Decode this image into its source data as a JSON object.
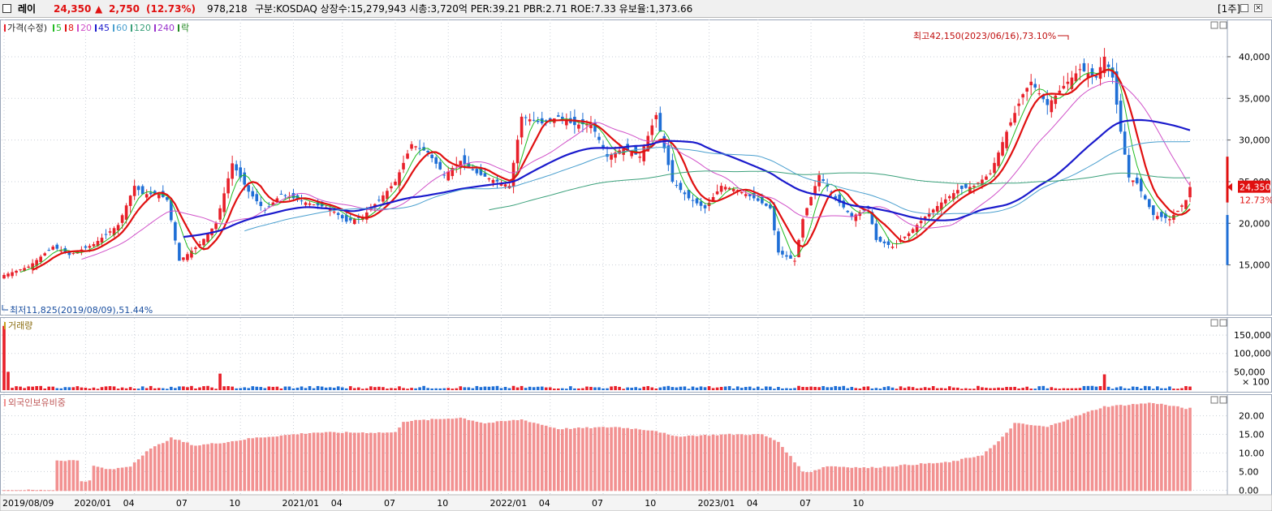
{
  "header": {
    "name": "레이",
    "price": "24,350",
    "change_arrow": "▲",
    "change": "2,750",
    "change_pct": "(12.73%)",
    "volume": "978,218",
    "info": "구분:KOSDAQ 상장수:15,279,943 시총:3,720억 PER:39.21 PBR:2.71 ROE:7.33 유보율:1,373.66",
    "period": "[1주]"
  },
  "colors": {
    "up": "#e8202a",
    "down": "#1f6fd6",
    "ma5": "#22bb22",
    "ma8": "#e01010",
    "ma20": "#d050c8",
    "ma45": "#1a1acc",
    "ma60": "#4a9fcf",
    "ma120": "#3aa07a",
    "ma240": "#9933cc",
    "foreign": "#f29191"
  },
  "chart_data": [
    {
      "type": "candlestick",
      "title": "가격(수정)",
      "legend": [
        {
          "label": "가격(수정)",
          "color": "#e8202a"
        },
        {
          "label": "5",
          "color": "#22bb22"
        },
        {
          "label": "8",
          "color": "#e01010"
        },
        {
          "label": "20",
          "color": "#d050c8"
        },
        {
          "label": "45",
          "color": "#1a1acc"
        },
        {
          "label": "60",
          "color": "#4a9fcf"
        },
        {
          "label": "120",
          "color": "#3aa07a"
        },
        {
          "label": "240",
          "color": "#9933cc"
        },
        {
          "label": "락",
          "color": "#228822"
        }
      ],
      "ylim": [
        10000,
        43500
      ],
      "yticks": [
        15000,
        20000,
        25000,
        30000,
        35000,
        40000
      ],
      "ytick_labels": [
        "15,000",
        "20,000",
        "25,000",
        "30,000",
        "35,000",
        "40,000"
      ],
      "x_labels": [
        "2019/08/09",
        "2020/01",
        "04",
        "07",
        "10",
        "2021/01",
        "04",
        "07",
        "10",
        "2022/01",
        "04",
        "07",
        "10",
        "2023/01",
        "04",
        "07",
        "10"
      ],
      "close_anchors": [
        [
          0,
          13800
        ],
        [
          6,
          14800
        ],
        [
          12,
          17200
        ],
        [
          16,
          16200
        ],
        [
          22,
          17500
        ],
        [
          28,
          19800
        ],
        [
          32,
          24500
        ],
        [
          34,
          23500
        ],
        [
          38,
          23500
        ],
        [
          40,
          22800
        ],
        [
          43,
          15500
        ],
        [
          48,
          17500
        ],
        [
          52,
          20000
        ],
        [
          56,
          27200
        ],
        [
          60,
          23800
        ],
        [
          64,
          21500
        ],
        [
          68,
          23500
        ],
        [
          74,
          22500
        ],
        [
          80,
          21800
        ],
        [
          84,
          20200
        ],
        [
          88,
          20800
        ],
        [
          92,
          22800
        ],
        [
          96,
          25000
        ],
        [
          100,
          29500
        ],
        [
          104,
          28500
        ],
        [
          108,
          25800
        ],
        [
          112,
          27500
        ],
        [
          116,
          26000
        ],
        [
          120,
          25200
        ],
        [
          124,
          24500
        ],
        [
          127,
          32800
        ],
        [
          132,
          32000
        ],
        [
          136,
          32800
        ],
        [
          140,
          31800
        ],
        [
          144,
          32000
        ],
        [
          148,
          28000
        ],
        [
          152,
          29000
        ],
        [
          156,
          28000
        ],
        [
          160,
          33000
        ],
        [
          164,
          25000
        ],
        [
          168,
          23000
        ],
        [
          172,
          21800
        ],
        [
          176,
          24500
        ],
        [
          180,
          24000
        ],
        [
          184,
          23000
        ],
        [
          188,
          21800
        ],
        [
          190,
          16500
        ],
        [
          194,
          15500
        ],
        [
          196,
          20500
        ],
        [
          200,
          25800
        ],
        [
          204,
          23000
        ],
        [
          208,
          20800
        ],
        [
          212,
          21800
        ],
        [
          214,
          18000
        ],
        [
          218,
          17200
        ],
        [
          222,
          18800
        ],
        [
          226,
          20800
        ],
        [
          230,
          22500
        ],
        [
          234,
          24000
        ],
        [
          238,
          24500
        ],
        [
          242,
          26000
        ],
        [
          246,
          31000
        ],
        [
          250,
          35500
        ],
        [
          252,
          37000
        ],
        [
          256,
          34200
        ],
        [
          260,
          36500
        ],
        [
          264,
          38500
        ],
        [
          268,
          37500
        ],
        [
          270,
          40000
        ],
        [
          272,
          37500
        ],
        [
          274,
          31000
        ],
        [
          276,
          25500
        ],
        [
          278,
          24800
        ],
        [
          282,
          21000
        ],
        [
          286,
          20500
        ],
        [
          288,
          21500
        ],
        [
          290,
          22800
        ],
        [
          291,
          24350
        ]
      ],
      "high_label": "최고42,150(2023/06/16),73.10%",
      "low_label": "최저11,825(2019/08/09),51.44%",
      "last_price": 24350,
      "last_price_label": "24,350",
      "last_pct_label": "12.73%",
      "ma_lines": [
        {
          "name": "MA5",
          "period": 5,
          "color": "#22bb22"
        },
        {
          "name": "MA8",
          "period": 8,
          "color": "#e01010"
        },
        {
          "name": "MA20",
          "period": 20,
          "color": "#d050c8"
        },
        {
          "name": "MA45",
          "period": 45,
          "color": "#1a1acc"
        },
        {
          "name": "MA60",
          "period": 60,
          "color": "#4a9fcf"
        },
        {
          "name": "MA120",
          "period": 120,
          "color": "#3aa07a"
        }
      ]
    },
    {
      "type": "bar",
      "title": "거래량",
      "unit_label": "× 100",
      "ylim": [
        0,
        190000
      ],
      "yticks": [
        50000,
        100000,
        150000
      ],
      "ytick_labels": [
        "50,000",
        "100,000",
        "150,000"
      ],
      "spikes": [
        {
          "i": 0,
          "v": 175000
        },
        {
          "i": 1,
          "v": 50000
        },
        {
          "i": 53,
          "v": 45000
        },
        {
          "i": 270,
          "v": 43000
        },
        {
          "i": 291,
          "v": 9800
        }
      ],
      "base_volume": 9000
    },
    {
      "type": "bar",
      "title": "외국인보유비중",
      "ylim": [
        -0.8,
        24.5
      ],
      "yticks": [
        0,
        5,
        10,
        15,
        20
      ],
      "ytick_labels": [
        "0.00",
        "5.00",
        "10.00",
        "15.00",
        "20.00"
      ],
      "anchors": [
        [
          0,
          0
        ],
        [
          12,
          0
        ],
        [
          13,
          8
        ],
        [
          18,
          8
        ],
        [
          19,
          2.5
        ],
        [
          21,
          2.5
        ],
        [
          22,
          6.5
        ],
        [
          26,
          5.5
        ],
        [
          31,
          6.5
        ],
        [
          35,
          10.5
        ],
        [
          41,
          14
        ],
        [
          47,
          12
        ],
        [
          55,
          13
        ],
        [
          61,
          14
        ],
        [
          76,
          15.5
        ],
        [
          96,
          15.5
        ],
        [
          98,
          18.5
        ],
        [
          112,
          19.5
        ],
        [
          118,
          18
        ],
        [
          127,
          19
        ],
        [
          136,
          16.5
        ],
        [
          150,
          17
        ],
        [
          160,
          16
        ],
        [
          164,
          14.5
        ],
        [
          178,
          15
        ],
        [
          186,
          15
        ],
        [
          190,
          13
        ],
        [
          196,
          5
        ],
        [
          198,
          5
        ],
        [
          202,
          6.5
        ],
        [
          212,
          6
        ],
        [
          224,
          7
        ],
        [
          232,
          7.5
        ],
        [
          236,
          8.5
        ],
        [
          240,
          9.5
        ],
        [
          244,
          13
        ],
        [
          248,
          18
        ],
        [
          256,
          17
        ],
        [
          262,
          19.5
        ],
        [
          266,
          21
        ],
        [
          270,
          22.5
        ],
        [
          282,
          23.5
        ],
        [
          290,
          22
        ]
      ]
    }
  ]
}
